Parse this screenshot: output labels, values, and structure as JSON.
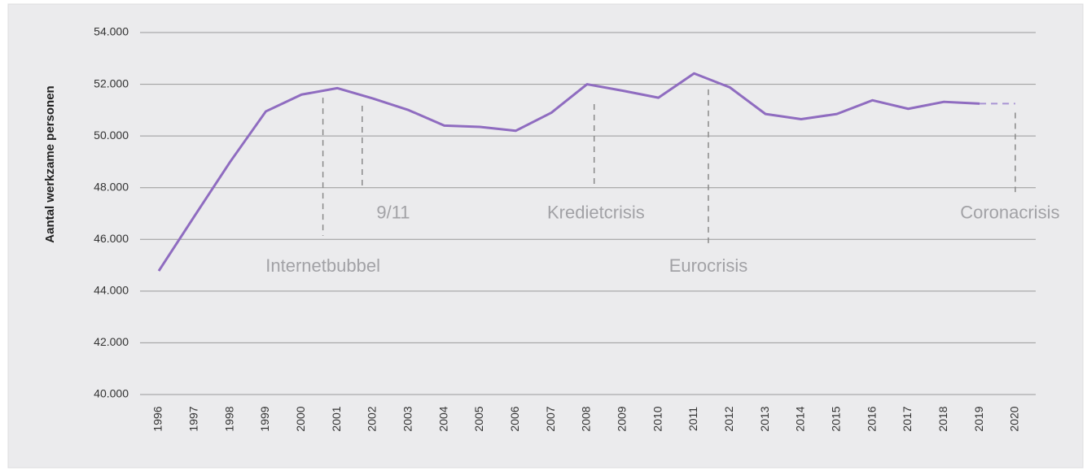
{
  "chart_data": {
    "type": "line",
    "y_label": "Aantal werkzame personen",
    "categories": [
      "1996",
      "1997",
      "1998",
      "1999",
      "2000",
      "2001",
      "2002",
      "2003",
      "2004",
      "2005",
      "2006",
      "2007",
      "2008",
      "2009",
      "2010",
      "2011",
      "2012",
      "2013",
      "2014",
      "2015",
      "2016",
      "2017",
      "2018",
      "2019",
      "2020"
    ],
    "series": [
      {
        "color": "#8f6cc0",
        "dashed": false,
        "values": [
          44780,
          46900,
          49000,
          50950,
          51600,
          51850,
          51450,
          51000,
          50400,
          50350,
          50200,
          50900,
          52000,
          51750,
          51480,
          52420,
          51880,
          50850,
          50650,
          50850,
          51380,
          51050,
          51320,
          51250,
          null
        ]
      },
      {
        "color": "#a894d4",
        "dashed": true,
        "values": [
          null,
          null,
          null,
          null,
          null,
          null,
          null,
          null,
          null,
          null,
          null,
          null,
          null,
          null,
          null,
          null,
          null,
          null,
          null,
          null,
          null,
          null,
          null,
          51250,
          51250
        ]
      }
    ],
    "ylim": [
      40000,
      54000
    ],
    "yticks": [
      {
        "value": 40000,
        "label": "40.000"
      },
      {
        "value": 42000,
        "label": "42.000"
      },
      {
        "value": 44000,
        "label": "44.000"
      },
      {
        "value": 46000,
        "label": "46.000"
      },
      {
        "value": 48000,
        "label": "48.000"
      },
      {
        "value": 50000,
        "label": "50.000"
      },
      {
        "value": 52000,
        "label": "52.000"
      },
      {
        "value": 54000,
        "label": "54.000"
      }
    ],
    "grid": true,
    "annotations": [
      {
        "text": "Internetbubbel",
        "x": 2000.6,
        "line": [
          51480,
          46140
        ],
        "text_x": 2000.6,
        "text_y": 44940,
        "anchor": "middle"
      },
      {
        "text": "9/11",
        "x": 2001.7,
        "line": [
          51170,
          47960
        ],
        "text_x": 2002.1,
        "text_y": 46990,
        "anchor": "start"
      },
      {
        "text": "Kredietcrisis",
        "x": 2008.2,
        "line": [
          51230,
          47960
        ],
        "text_x": 2008.25,
        "text_y": 46990,
        "anchor": "middle"
      },
      {
        "text": "Eurocrisis",
        "x": 2011.4,
        "line": [
          51800,
          45820
        ],
        "text_x": 2011.4,
        "text_y": 44940,
        "anchor": "middle"
      },
      {
        "text": "Coronacrisis",
        "x": 2020,
        "line": [
          50900,
          47830
        ],
        "text_x": 2019.85,
        "text_y": 46990,
        "anchor": "middle"
      }
    ]
  }
}
